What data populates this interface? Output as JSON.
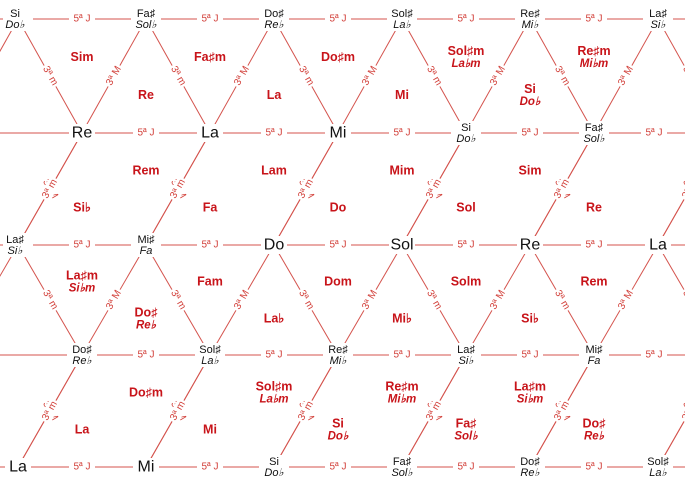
{
  "interval_labels": {
    "fifth": "5ª J",
    "major_third": "3ª M",
    "minor_third": "3ª m"
  },
  "colors": {
    "lines": "#d4534d",
    "triads": "#c8141a",
    "notes": "#111111"
  },
  "rows": [
    {
      "notes": [
        {
          "name": "Si",
          "alt": "Do♭",
          "size": "small"
        },
        {
          "name": "Fa♯",
          "alt": "Sol♭",
          "size": "small"
        },
        {
          "name": "Do♯",
          "alt": "Re♭",
          "size": "small"
        },
        {
          "name": "Sol♯",
          "alt": "La♭",
          "size": "small"
        },
        {
          "name": "Re♯",
          "alt": "Mi♭",
          "size": "small"
        },
        {
          "name": "La♯",
          "alt": "Si♭",
          "size": "small"
        }
      ]
    },
    {
      "notes": [
        {
          "name": "Re",
          "size": "big"
        },
        {
          "name": "La",
          "size": "big"
        },
        {
          "name": "Mi",
          "size": "big"
        },
        {
          "name": "Si",
          "alt": "Do♭",
          "size": "small"
        },
        {
          "name": "Fa♯",
          "alt": "Sol♭",
          "size": "small"
        }
      ]
    },
    {
      "notes": [
        {
          "name": "La♯",
          "alt": "Si♭",
          "size": "small"
        },
        {
          "name": "Mi♯",
          "alt": "Fa",
          "size": "small"
        },
        {
          "name": "Do",
          "size": "big"
        },
        {
          "name": "Sol",
          "size": "big"
        },
        {
          "name": "Re",
          "size": "big"
        },
        {
          "name": "La",
          "size": "big"
        }
      ]
    },
    {
      "notes": [
        {
          "name": "Do♯",
          "alt": "Re♭",
          "size": "small"
        },
        {
          "name": "Sol♯",
          "alt": "La♭",
          "size": "small"
        },
        {
          "name": "Re♯",
          "alt": "Mi♭",
          "size": "small"
        },
        {
          "name": "La♯",
          "alt": "Si♭",
          "size": "small"
        },
        {
          "name": "Mi♯",
          "alt": "Fa",
          "size": "small"
        }
      ]
    },
    {
      "notes": [
        {
          "name": "La",
          "size": "big"
        },
        {
          "name": "Mi",
          "size": "big"
        },
        {
          "name": "Si",
          "alt": "Do♭",
          "size": "small"
        },
        {
          "name": "Fa♯",
          "alt": "Sol♭",
          "size": "small"
        },
        {
          "name": "Do♯",
          "alt": "Re♭",
          "size": "small"
        },
        {
          "name": "Sol♯",
          "alt": "La♭",
          "size": "small"
        }
      ]
    }
  ],
  "triads": [
    [
      {
        "name": "Sim"
      },
      {
        "name": "Re"
      },
      {
        "name": "Fa♯m"
      },
      {
        "name": "La"
      },
      {
        "name": "Do♯m"
      },
      {
        "name": "Mi"
      },
      {
        "name": "Sol♯m",
        "alt": "La♭m"
      },
      {
        "name": "Si",
        "alt": "Do♭"
      },
      {
        "name": "Re♯m",
        "alt": "Mi♭m"
      }
    ],
    [
      {
        "name": "Si♭"
      },
      {
        "name": "Rem"
      },
      {
        "name": "Fa"
      },
      {
        "name": "Lam"
      },
      {
        "name": "Do"
      },
      {
        "name": "Mim"
      },
      {
        "name": "Sol"
      },
      {
        "name": "Sim"
      },
      {
        "name": "Re"
      }
    ],
    [
      {
        "name": "La♯m",
        "alt": "Si♭m"
      },
      {
        "name": "Do♯",
        "alt": "Re♭"
      },
      {
        "name": "Fam"
      },
      {
        "name": "La♭"
      },
      {
        "name": "Dom"
      },
      {
        "name": "Mi♭"
      },
      {
        "name": "Solm"
      },
      {
        "name": "Si♭"
      },
      {
        "name": "Rem"
      }
    ],
    [
      {
        "name": "La"
      },
      {
        "name": "Do♯m"
      },
      {
        "name": "Mi"
      },
      {
        "name": "Sol♯m",
        "alt": "La♭m"
      },
      {
        "name": "Si",
        "alt": "Do♭"
      },
      {
        "name": "Re♯m",
        "alt": "Mi♭m"
      },
      {
        "name": "Fa♯",
        "alt": "Sol♭"
      },
      {
        "name": "La♯m",
        "alt": "Si♭m"
      },
      {
        "name": "Do♯",
        "alt": "Re♭"
      }
    ]
  ]
}
